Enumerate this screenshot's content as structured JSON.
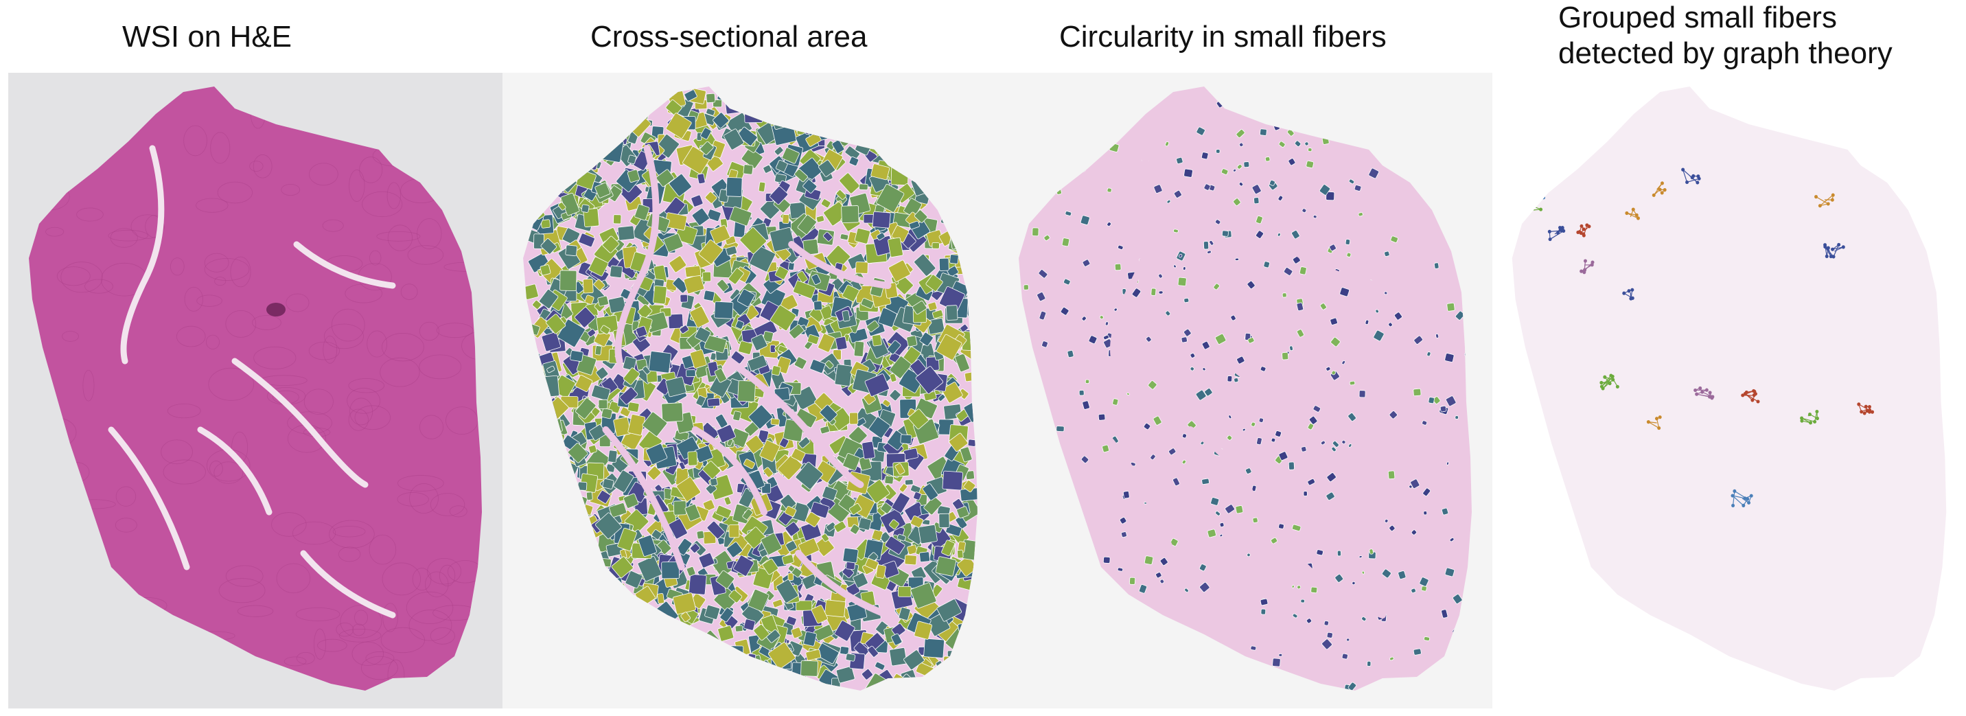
{
  "panels": [
    {
      "title": "WSI on H&E",
      "background": "#e3e3e5",
      "tissue": "#c2539f",
      "tissue_dark": "#a93d87"
    },
    {
      "title": "Cross-sectional area",
      "background": "#f4f4f4",
      "tissue": "#ecc6e4",
      "fiber_colors": [
        "#3d6c80",
        "#4f7c7a",
        "#6c9a5b",
        "#8fae3f",
        "#b7b43a",
        "#4b4b8e"
      ]
    },
    {
      "title": "Circularity in small fibers",
      "background": "#f4f4f4",
      "tissue": "#ecc8e2",
      "fiber_colors": [
        "#3b3f86",
        "#4a4b8f",
        "#3f6f85",
        "#7fb45a"
      ]
    },
    {
      "title_lines": [
        "Grouped small fibers",
        "detected by graph theory"
      ],
      "background": "#ffffff",
      "tissue": "#f6edf4",
      "group_colors": [
        "#6bab3c",
        "#3b4f9a",
        "#b5462e",
        "#c98a2d",
        "#4a7fb8",
        "#9b6a9b"
      ]
    }
  ]
}
